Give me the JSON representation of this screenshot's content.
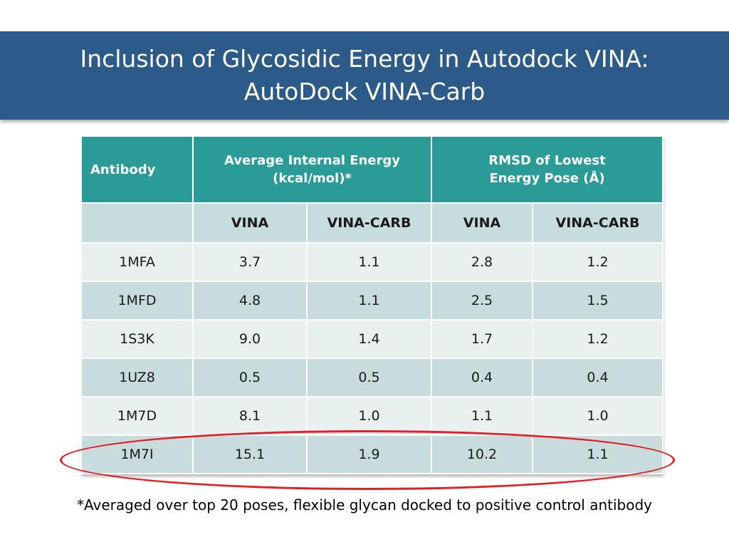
{
  "slide": {
    "title_line1": "Inclusion of Glycosidic Energy in Autodock VINA:",
    "title_line2": "AutoDock VINA-Carb",
    "footnote": "*Averaged over top 20 poses, flexible glycan docked to positive control antibody"
  },
  "colors": {
    "title_bar": "#2c5b8a",
    "header_teal": "#2a9b96",
    "row_light": "#e8f0f0",
    "row_dark": "#c9dcdd",
    "highlight_ellipse": "#e31e24"
  },
  "table": {
    "header": {
      "antibody": "Antibody",
      "energy_line1": "Average Internal Energy",
      "energy_line2": "(kcal/mol)*",
      "rmsd_line1": "RMSD of Lowest",
      "rmsd_line2": "Energy Pose (Å)"
    },
    "subheader": [
      "",
      "VINA",
      "VINA-CARB",
      "VINA",
      "VINA-CARB"
    ],
    "rows": [
      [
        "1MFA",
        "3.7",
        "1.1",
        "2.8",
        "1.2"
      ],
      [
        "1MFD",
        "4.8",
        "1.1",
        "2.5",
        "1.5"
      ],
      [
        "1S3K",
        "9.0",
        "1.4",
        "1.7",
        "1.2"
      ],
      [
        "1UZ8",
        "0.5",
        "0.5",
        "0.4",
        "0.4"
      ],
      [
        "1M7D",
        "8.1",
        "1.0",
        "1.1",
        "1.0"
      ],
      [
        "1M7I",
        "15.1",
        "1.9",
        "10.2",
        "1.1"
      ]
    ]
  }
}
